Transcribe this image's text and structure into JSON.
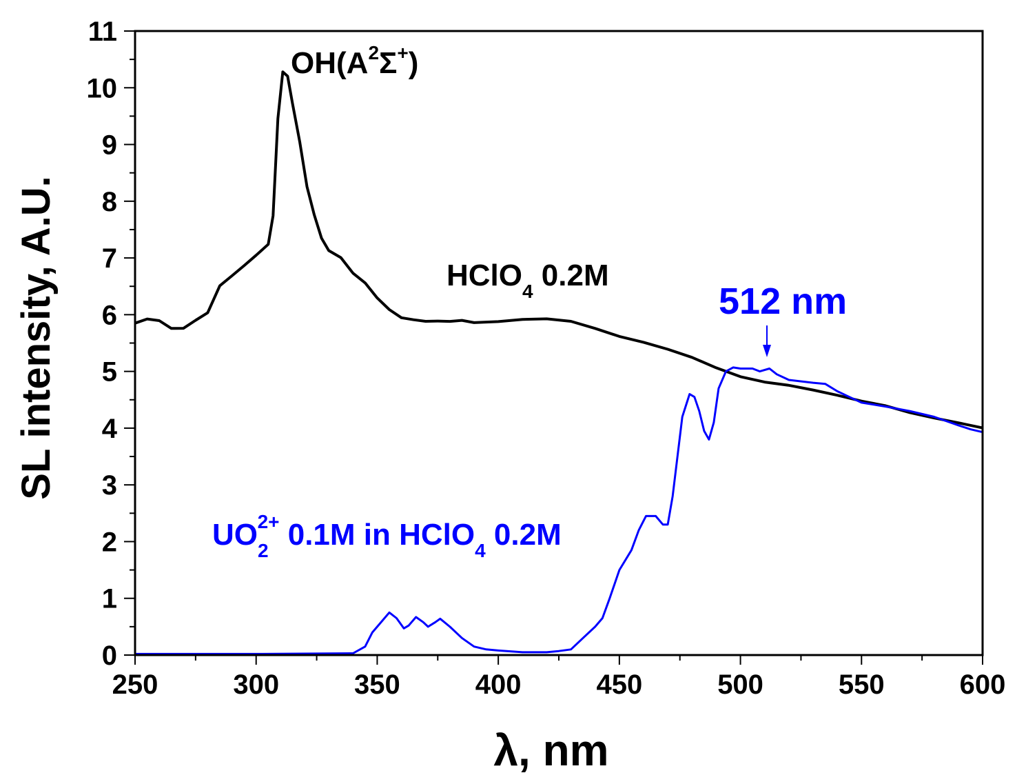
{
  "chart_data": {
    "type": "line",
    "title": "",
    "xlabel": "λ, nm",
    "ylabel": "SL intensity, A.U.",
    "xlim": [
      250,
      600
    ],
    "ylim": [
      0,
      11
    ],
    "xticks": [
      "250",
      "300",
      "350",
      "400",
      "450",
      "500",
      "550",
      "600"
    ],
    "yticks": [
      "0",
      "1",
      "2",
      "3",
      "4",
      "5",
      "6",
      "7",
      "8",
      "9",
      "10",
      "11"
    ],
    "grid": false,
    "colors": {
      "hclo4": "#000000",
      "uo2": "#0000ff"
    },
    "series": [
      {
        "name": "HClO4 0.2M",
        "color": "#000000",
        "x": [
          250,
          255,
          260,
          265,
          270,
          275,
          280,
          285,
          290,
          295,
          300,
          305,
          307,
          309,
          311,
          313,
          315,
          318,
          321,
          324,
          327,
          330,
          335,
          340,
          345,
          350,
          355,
          360,
          365,
          370,
          375,
          380,
          385,
          390,
          400,
          410,
          420,
          430,
          440,
          450,
          460,
          470,
          480,
          490,
          500,
          510,
          520,
          530,
          540,
          550,
          560,
          570,
          580,
          590,
          600
        ],
        "y": [
          5.85,
          5.9,
          5.85,
          5.7,
          5.7,
          5.85,
          6.0,
          6.5,
          6.7,
          6.9,
          7.1,
          7.3,
          7.8,
          9.5,
          10.3,
          10.2,
          9.7,
          9.0,
          8.2,
          7.7,
          7.3,
          7.1,
          7.0,
          6.75,
          6.6,
          6.35,
          6.15,
          6.0,
          5.95,
          5.9,
          5.88,
          5.85,
          5.85,
          5.8,
          5.82,
          5.87,
          5.9,
          5.88,
          5.78,
          5.66,
          5.57,
          5.45,
          5.3,
          5.1,
          4.92,
          4.8,
          4.72,
          4.62,
          4.52,
          4.42,
          4.35,
          4.25,
          4.18,
          4.12,
          4.05
        ]
      },
      {
        "name": "UO2 2+ 0.1M in HClO4 0.2M",
        "color": "#0000ff",
        "x": [
          250,
          300,
          340,
          345,
          348,
          352,
          355,
          358,
          361,
          363,
          366,
          369,
          371,
          374,
          376,
          380,
          385,
          390,
          395,
          400,
          410,
          420,
          425,
          430,
          435,
          440,
          443,
          446,
          450,
          455,
          458,
          461,
          465,
          468,
          470,
          472,
          474,
          476,
          479,
          481,
          483,
          485,
          487,
          489,
          491,
          494,
          497,
          500,
          505,
          508,
          512,
          515,
          520,
          530,
          535,
          540,
          545,
          550,
          560,
          570,
          580,
          590,
          595,
          600
        ],
        "y": [
          0.02,
          0.02,
          0.03,
          0.15,
          0.4,
          0.6,
          0.75,
          0.65,
          0.47,
          0.52,
          0.67,
          0.58,
          0.5,
          0.58,
          0.64,
          0.5,
          0.3,
          0.15,
          0.1,
          0.08,
          0.05,
          0.05,
          0.07,
          0.1,
          0.3,
          0.5,
          0.65,
          1.0,
          1.5,
          1.85,
          2.2,
          2.45,
          2.45,
          2.3,
          2.3,
          2.8,
          3.5,
          4.2,
          4.6,
          4.55,
          4.3,
          3.95,
          3.8,
          4.1,
          4.7,
          5.0,
          5.07,
          5.05,
          5.05,
          5.0,
          5.05,
          4.95,
          4.85,
          4.8,
          4.78,
          4.65,
          4.55,
          4.45,
          4.38,
          4.3,
          4.2,
          4.05,
          3.98,
          3.93
        ]
      }
    ],
    "annotations": {
      "oh": {
        "main": "OH(A",
        "sup1": "2",
        "sigma": "Σ",
        "sup2": "+",
        "close": ")"
      },
      "hclo4": {
        "main": "HClO",
        "sub": "4",
        "rest": " 0.2M"
      },
      "uo2": {
        "main": "UO",
        "sub": "2",
        "sup": "2+",
        "rest": " 0.1M in HClO",
        "sub2": "4",
        "rest2": " 0.2M"
      },
      "peak": {
        "label": "512 nm",
        "x": 512
      }
    }
  }
}
